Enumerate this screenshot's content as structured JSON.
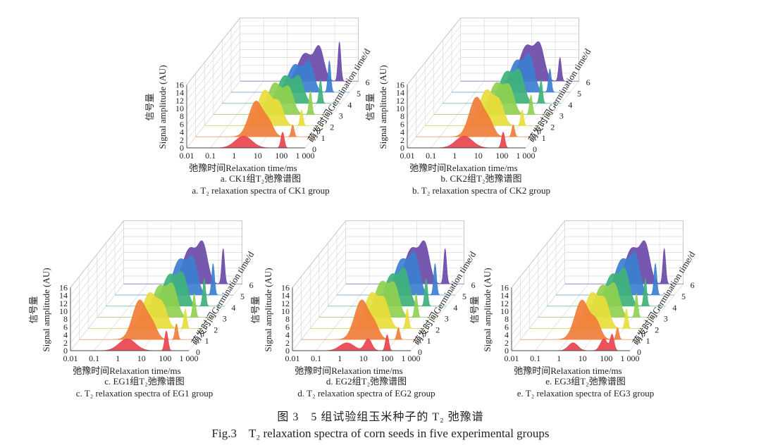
{
  "figure": {
    "caption_cn": "图 3　5 组试验组玉米种子的 T₂ 弛豫谱",
    "caption_en": "Fig.3　T₂ relaxation spectra of corn seeds in five experimental groups"
  },
  "axes_text": {
    "ylabel_en": "Signal amplitude (AU)",
    "ylabel_cn": "信号量",
    "xlabel": "弛豫时间Relaxation time/ms",
    "zlabel": "萌发时间Germination time/d",
    "xticks": [
      "0.01",
      "0.1",
      "1",
      "10",
      "100",
      "1 000"
    ],
    "yticks": [
      "0",
      "2",
      "4",
      "6",
      "8",
      "10",
      "12",
      "14",
      "16"
    ],
    "zticks": [
      "0",
      "1",
      "2",
      "3",
      "4",
      "5",
      "6"
    ]
  },
  "colors": {
    "day0": "#e8434e",
    "day1": "#f07d3a",
    "day2": "#e8dd3b",
    "day3": "#8fd050",
    "day4": "#3fb27a",
    "day5": "#3c7fd0",
    "day6": "#6a4aa8"
  },
  "chart_data": [
    {
      "type": "area",
      "caption_cn": "a. CK1组T₂弛豫谱图",
      "caption_en": "a. T₂ relaxation spectra of CK1 group",
      "xscale": "log",
      "xlim": [
        0.01,
        1000
      ],
      "ylim": [
        0,
        16
      ],
      "series": [
        {
          "name": "0",
          "peaks": [
            {
              "log10_t2": 0.4,
              "amp": 3,
              "w": 0.35
            },
            {
              "log10_t2": 2.05,
              "amp": 4,
              "w": 0.07
            }
          ]
        },
        {
          "name": "1",
          "peaks": [
            {
              "log10_t2": 0.55,
              "amp": 9,
              "w": 0.3
            },
            {
              "log10_t2": 1.1,
              "amp": 3,
              "w": 0.2
            },
            {
              "log10_t2": 2.1,
              "amp": 3,
              "w": 0.06
            }
          ]
        },
        {
          "name": "2",
          "peaks": [
            {
              "log10_t2": 0.55,
              "amp": 9,
              "w": 0.3
            },
            {
              "log10_t2": 1.15,
              "amp": 5,
              "w": 0.2
            },
            {
              "log10_t2": 2.1,
              "amp": 4,
              "w": 0.06
            }
          ]
        },
        {
          "name": "3",
          "peaks": [
            {
              "log10_t2": 0.6,
              "amp": 8,
              "w": 0.3
            },
            {
              "log10_t2": 1.2,
              "amp": 6,
              "w": 0.2
            },
            {
              "log10_t2": 2.1,
              "amp": 6,
              "w": 0.06
            }
          ]
        },
        {
          "name": "4",
          "peaks": [
            {
              "log10_t2": 0.65,
              "amp": 7,
              "w": 0.3
            },
            {
              "log10_t2": 1.25,
              "amp": 6,
              "w": 0.2
            },
            {
              "log10_t2": 2.15,
              "amp": 6,
              "w": 0.06
            }
          ]
        },
        {
          "name": "5",
          "peaks": [
            {
              "log10_t2": 0.7,
              "amp": 7,
              "w": 0.3
            },
            {
              "log10_t2": 1.3,
              "amp": 7,
              "w": 0.2
            },
            {
              "log10_t2": 2.15,
              "amp": 8,
              "w": 0.06
            }
          ]
        },
        {
          "name": "6",
          "peaks": [
            {
              "log10_t2": 0.75,
              "amp": 7,
              "w": 0.3
            },
            {
              "log10_t2": 1.35,
              "amp": 8,
              "w": 0.2
            },
            {
              "log10_t2": 2.2,
              "amp": 10,
              "w": 0.06
            }
          ]
        }
      ]
    },
    {
      "type": "area",
      "caption_cn": "b. CK2组T₂弛豫谱图",
      "caption_en": "b. T₂ relaxation spectra of CK2 group",
      "xscale": "log",
      "xlim": [
        0.01,
        1000
      ],
      "ylim": [
        0,
        16
      ],
      "series": [
        {
          "name": "0",
          "peaks": [
            {
              "log10_t2": 0.4,
              "amp": 3,
              "w": 0.35
            },
            {
              "log10_t2": 2.05,
              "amp": 4,
              "w": 0.07
            }
          ]
        },
        {
          "name": "1",
          "peaks": [
            {
              "log10_t2": 0.55,
              "amp": 10,
              "w": 0.3
            },
            {
              "log10_t2": 1.1,
              "amp": 3,
              "w": 0.2
            },
            {
              "log10_t2": 2.1,
              "amp": 3,
              "w": 0.06
            }
          ]
        },
        {
          "name": "2",
          "peaks": [
            {
              "log10_t2": 0.6,
              "amp": 9,
              "w": 0.3
            },
            {
              "log10_t2": 1.15,
              "amp": 5,
              "w": 0.2
            },
            {
              "log10_t2": 2.1,
              "amp": 4,
              "w": 0.06
            }
          ]
        },
        {
          "name": "3",
          "peaks": [
            {
              "log10_t2": 0.65,
              "amp": 8,
              "w": 0.3
            },
            {
              "log10_t2": 1.2,
              "amp": 6,
              "w": 0.2
            },
            {
              "log10_t2": 2.1,
              "amp": 5,
              "w": 0.06
            }
          ]
        },
        {
          "name": "4",
          "peaks": [
            {
              "log10_t2": 0.7,
              "amp": 8,
              "w": 0.3
            },
            {
              "log10_t2": 1.25,
              "amp": 7,
              "w": 0.2
            },
            {
              "log10_t2": 2.15,
              "amp": 6,
              "w": 0.06
            }
          ]
        },
        {
          "name": "5",
          "peaks": [
            {
              "log10_t2": 0.75,
              "amp": 8,
              "w": 0.3
            },
            {
              "log10_t2": 1.3,
              "amp": 8,
              "w": 0.2
            },
            {
              "log10_t2": 2.15,
              "amp": 6,
              "w": 0.06
            }
          ]
        },
        {
          "name": "6",
          "peaks": [
            {
              "log10_t2": 0.8,
              "amp": 9,
              "w": 0.3
            },
            {
              "log10_t2": 1.35,
              "amp": 8,
              "w": 0.2
            },
            {
              "log10_t2": 2.2,
              "amp": 6,
              "w": 0.06
            }
          ]
        }
      ]
    },
    {
      "type": "area",
      "caption_cn": "c. EG1组T₂弛豫谱图",
      "caption_en": "c. T₂ relaxation spectra of EG1 group",
      "xscale": "log",
      "xlim": [
        0.01,
        1000
      ],
      "ylim": [
        0,
        16
      ],
      "series": [
        {
          "name": "0",
          "peaks": [
            {
              "log10_t2": 0.4,
              "amp": 3,
              "w": 0.35
            },
            {
              "log10_t2": 2.05,
              "amp": 5,
              "w": 0.07
            }
          ]
        },
        {
          "name": "1",
          "peaks": [
            {
              "log10_t2": 0.55,
              "amp": 10,
              "w": 0.3
            },
            {
              "log10_t2": 1.1,
              "amp": 3,
              "w": 0.2
            },
            {
              "log10_t2": 2.1,
              "amp": 4,
              "w": 0.06
            }
          ]
        },
        {
          "name": "2",
          "peaks": [
            {
              "log10_t2": 0.6,
              "amp": 9,
              "w": 0.3
            },
            {
              "log10_t2": 1.15,
              "amp": 5,
              "w": 0.2
            },
            {
              "log10_t2": 2.1,
              "amp": 5,
              "w": 0.06
            }
          ]
        },
        {
          "name": "3",
          "peaks": [
            {
              "log10_t2": 0.65,
              "amp": 8,
              "w": 0.3
            },
            {
              "log10_t2": 1.2,
              "amp": 7,
              "w": 0.2
            },
            {
              "log10_t2": 2.1,
              "amp": 6,
              "w": 0.06
            }
          ]
        },
        {
          "name": "4",
          "peaks": [
            {
              "log10_t2": 0.7,
              "amp": 8,
              "w": 0.3
            },
            {
              "log10_t2": 1.25,
              "amp": 7,
              "w": 0.2
            },
            {
              "log10_t2": 2.15,
              "amp": 7,
              "w": 0.06
            }
          ]
        },
        {
          "name": "5",
          "peaks": [
            {
              "log10_t2": 0.75,
              "amp": 9,
              "w": 0.3
            },
            {
              "log10_t2": 1.3,
              "amp": 8,
              "w": 0.2
            },
            {
              "log10_t2": 2.15,
              "amp": 8,
              "w": 0.06
            }
          ]
        },
        {
          "name": "6",
          "peaks": [
            {
              "log10_t2": 0.8,
              "amp": 9,
              "w": 0.3
            },
            {
              "log10_t2": 1.35,
              "amp": 9,
              "w": 0.2
            },
            {
              "log10_t2": 2.2,
              "amp": 9,
              "w": 0.06
            }
          ]
        }
      ]
    },
    {
      "type": "area",
      "caption_cn": "d. EG2组T₂弛豫谱图",
      "caption_en": "d. T₂ relaxation spectra of EG2 group",
      "xscale": "log",
      "xlim": [
        0.01,
        1000
      ],
      "ylim": [
        0,
        16
      ],
      "series": [
        {
          "name": "0",
          "peaks": [
            {
              "log10_t2": 0.3,
              "amp": 2,
              "w": 0.3
            },
            {
              "log10_t2": 1.2,
              "amp": 3,
              "w": 0.15
            },
            {
              "log10_t2": 2.0,
              "amp": 4,
              "w": 0.07
            }
          ]
        },
        {
          "name": "1",
          "peaks": [
            {
              "log10_t2": 0.55,
              "amp": 10,
              "w": 0.3
            },
            {
              "log10_t2": 1.1,
              "amp": 3,
              "w": 0.2
            },
            {
              "log10_t2": 2.1,
              "amp": 3,
              "w": 0.06
            }
          ]
        },
        {
          "name": "2",
          "peaks": [
            {
              "log10_t2": 0.6,
              "amp": 9,
              "w": 0.3
            },
            {
              "log10_t2": 1.15,
              "amp": 6,
              "w": 0.2
            },
            {
              "log10_t2": 2.1,
              "amp": 5,
              "w": 0.06
            }
          ]
        },
        {
          "name": "3",
          "peaks": [
            {
              "log10_t2": 0.65,
              "amp": 9,
              "w": 0.3
            },
            {
              "log10_t2": 1.2,
              "amp": 7,
              "w": 0.2
            },
            {
              "log10_t2": 2.1,
              "amp": 6,
              "w": 0.06
            }
          ]
        },
        {
          "name": "4",
          "peaks": [
            {
              "log10_t2": 0.7,
              "amp": 8,
              "w": 0.3
            },
            {
              "log10_t2": 1.25,
              "amp": 8,
              "w": 0.2
            },
            {
              "log10_t2": 2.15,
              "amp": 7,
              "w": 0.06
            }
          ]
        },
        {
          "name": "5",
          "peaks": [
            {
              "log10_t2": 0.75,
              "amp": 9,
              "w": 0.3
            },
            {
              "log10_t2": 1.3,
              "amp": 9,
              "w": 0.2
            },
            {
              "log10_t2": 2.15,
              "amp": 8,
              "w": 0.06
            }
          ]
        },
        {
          "name": "6",
          "peaks": [
            {
              "log10_t2": 0.8,
              "amp": 9,
              "w": 0.3
            },
            {
              "log10_t2": 1.35,
              "amp": 9,
              "w": 0.2
            },
            {
              "log10_t2": 2.2,
              "amp": 9,
              "w": 0.06
            }
          ]
        }
      ]
    },
    {
      "type": "area",
      "caption_cn": "e. EG3组T₂弛豫谱图",
      "caption_en": "e. T₂ relaxation spectra of EG3 group",
      "xscale": "log",
      "xlim": [
        0.01,
        1000
      ],
      "ylim": [
        0,
        16
      ],
      "series": [
        {
          "name": "0",
          "peaks": [
            {
              "log10_t2": 0.6,
              "amp": 2,
              "w": 0.2
            },
            {
              "log10_t2": 1.9,
              "amp": 3,
              "w": 0.15
            },
            {
              "log10_t2": 2.25,
              "amp": 4,
              "w": 0.08
            }
          ]
        },
        {
          "name": "1",
          "peaks": [
            {
              "log10_t2": 0.6,
              "amp": 10,
              "w": 0.3
            },
            {
              "log10_t2": 1.2,
              "amp": 4,
              "w": 0.2
            },
            {
              "log10_t2": 2.1,
              "amp": 3,
              "w": 0.06
            }
          ]
        },
        {
          "name": "2",
          "peaks": [
            {
              "log10_t2": 0.65,
              "amp": 9,
              "w": 0.3
            },
            {
              "log10_t2": 1.2,
              "amp": 6,
              "w": 0.2
            },
            {
              "log10_t2": 2.1,
              "amp": 5,
              "w": 0.06
            }
          ]
        },
        {
          "name": "3",
          "peaks": [
            {
              "log10_t2": 0.7,
              "amp": 8,
              "w": 0.3
            },
            {
              "log10_t2": 1.25,
              "amp": 7,
              "w": 0.2
            },
            {
              "log10_t2": 2.15,
              "amp": 6,
              "w": 0.06
            }
          ]
        },
        {
          "name": "4",
          "peaks": [
            {
              "log10_t2": 0.75,
              "amp": 8,
              "w": 0.3
            },
            {
              "log10_t2": 1.3,
              "amp": 8,
              "w": 0.2
            },
            {
              "log10_t2": 2.15,
              "amp": 7,
              "w": 0.06
            }
          ]
        },
        {
          "name": "5",
          "peaks": [
            {
              "log10_t2": 0.8,
              "amp": 9,
              "w": 0.3
            },
            {
              "log10_t2": 1.35,
              "amp": 9,
              "w": 0.2
            },
            {
              "log10_t2": 2.2,
              "amp": 8,
              "w": 0.06
            }
          ]
        },
        {
          "name": "6",
          "peaks": [
            {
              "log10_t2": 0.85,
              "amp": 9,
              "w": 0.3
            },
            {
              "log10_t2": 1.4,
              "amp": 9,
              "w": 0.2
            },
            {
              "log10_t2": 2.2,
              "amp": 9,
              "w": 0.06
            }
          ]
        }
      ]
    }
  ]
}
